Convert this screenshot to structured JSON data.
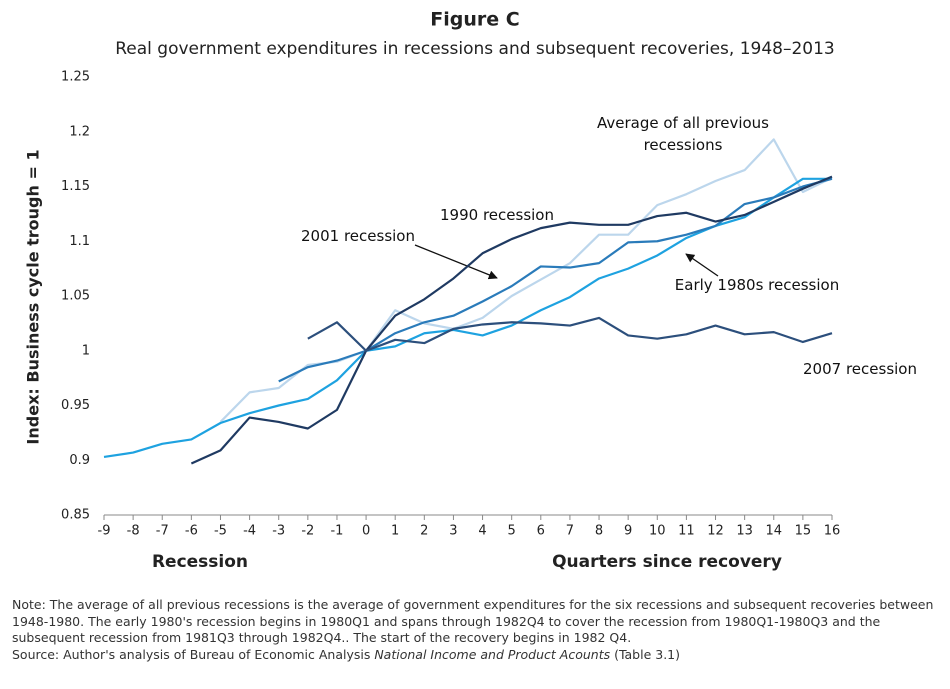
{
  "chart_data": {
    "type": "line",
    "title": "Figure C",
    "subtitle": "Real government expenditures in recessions and subsequent recoveries, 1948–2013",
    "y_label": "Index: Business cycle trough = 1",
    "x_label_left": "Recession",
    "x_label_right": "Quarters since recovery",
    "x": [
      -9,
      -8,
      -7,
      -6,
      -5,
      -4,
      -3,
      -2,
      -1,
      0,
      1,
      2,
      3,
      4,
      5,
      6,
      7,
      8,
      9,
      10,
      11,
      12,
      13,
      14,
      15,
      16
    ],
    "xlim": [
      -9,
      16
    ],
    "xticks": [
      -9,
      -8,
      -7,
      -6,
      -5,
      -4,
      -3,
      -2,
      -1,
      0,
      1,
      2,
      3,
      4,
      5,
      6,
      7,
      8,
      9,
      10,
      11,
      12,
      13,
      14,
      15,
      16
    ],
    "ylim": [
      0.85,
      1.25
    ],
    "yticks": [
      0.85,
      0.9,
      0.95,
      1,
      1.05,
      1.1,
      1.15,
      1.2,
      1.25
    ],
    "grid": false,
    "series": [
      {
        "name": "Average of all previous recessions",
        "color": "#bcd6ec",
        "values": [
          null,
          null,
          null,
          null,
          0.935,
          0.962,
          0.966,
          0.987,
          0.99,
          1.0,
          1.037,
          1.025,
          1.02,
          1.03,
          1.05,
          1.065,
          1.08,
          1.106,
          1.106,
          1.133,
          1.143,
          1.155,
          1.165,
          1.193,
          1.145,
          1.158
        ]
      },
      {
        "name": "Early 1980s recession",
        "color": "#1ea2e0",
        "values": [
          0.903,
          0.907,
          0.915,
          0.919,
          0.934,
          0.943,
          0.95,
          0.956,
          0.973,
          1.0,
          1.004,
          1.016,
          1.019,
          1.014,
          1.023,
          1.037,
          1.049,
          1.066,
          1.075,
          1.087,
          1.103,
          1.114,
          1.122,
          1.14,
          1.157,
          1.157
        ]
      },
      {
        "name": "2001 recession",
        "color": "#2a7bba",
        "values": [
          null,
          null,
          null,
          null,
          null,
          null,
          0.972,
          0.985,
          0.991,
          1.0,
          1.016,
          1.026,
          1.032,
          1.045,
          1.059,
          1.077,
          1.076,
          1.08,
          1.099,
          1.1,
          1.106,
          1.114,
          1.134,
          1.14,
          1.15,
          1.157
        ]
      },
      {
        "name": "1990 recession",
        "color": "#1f3a62",
        "values": [
          null,
          null,
          null,
          0.897,
          0.909,
          0.939,
          0.935,
          0.929,
          0.946,
          1.0,
          1.032,
          1.047,
          1.066,
          1.089,
          1.102,
          1.112,
          1.117,
          1.115,
          1.115,
          1.123,
          1.126,
          1.118,
          1.124,
          1.136,
          1.148,
          1.159
        ]
      },
      {
        "name": "2007 recession",
        "color": "#2c4f7c",
        "values": [
          null,
          null,
          null,
          null,
          null,
          null,
          null,
          1.011,
          1.026,
          1.0,
          1.01,
          1.007,
          1.02,
          1.024,
          1.026,
          1.025,
          1.023,
          1.03,
          1.014,
          1.011,
          1.015,
          1.023,
          1.015,
          1.017,
          1.008,
          1.016
        ]
      }
    ]
  },
  "note": {
    "text": "Note: The average of all previous recessions is the average of government expenditures for the six recessions and subsequent recoveries between 1948-1980.  The early 1980's recession begins in 1980Q1 and spans through 1982Q4 to cover the recession from 1980Q1-1980Q3 and the subsequent recession from 1981Q3 through 1982Q4..  The start of the recovery begins in 1982 Q4.",
    "source": [
      "Source: Author's analysis of Bureau of Economic Analysis ",
      "National Income and Product Acounts",
      " (Table 3.1)"
    ]
  }
}
